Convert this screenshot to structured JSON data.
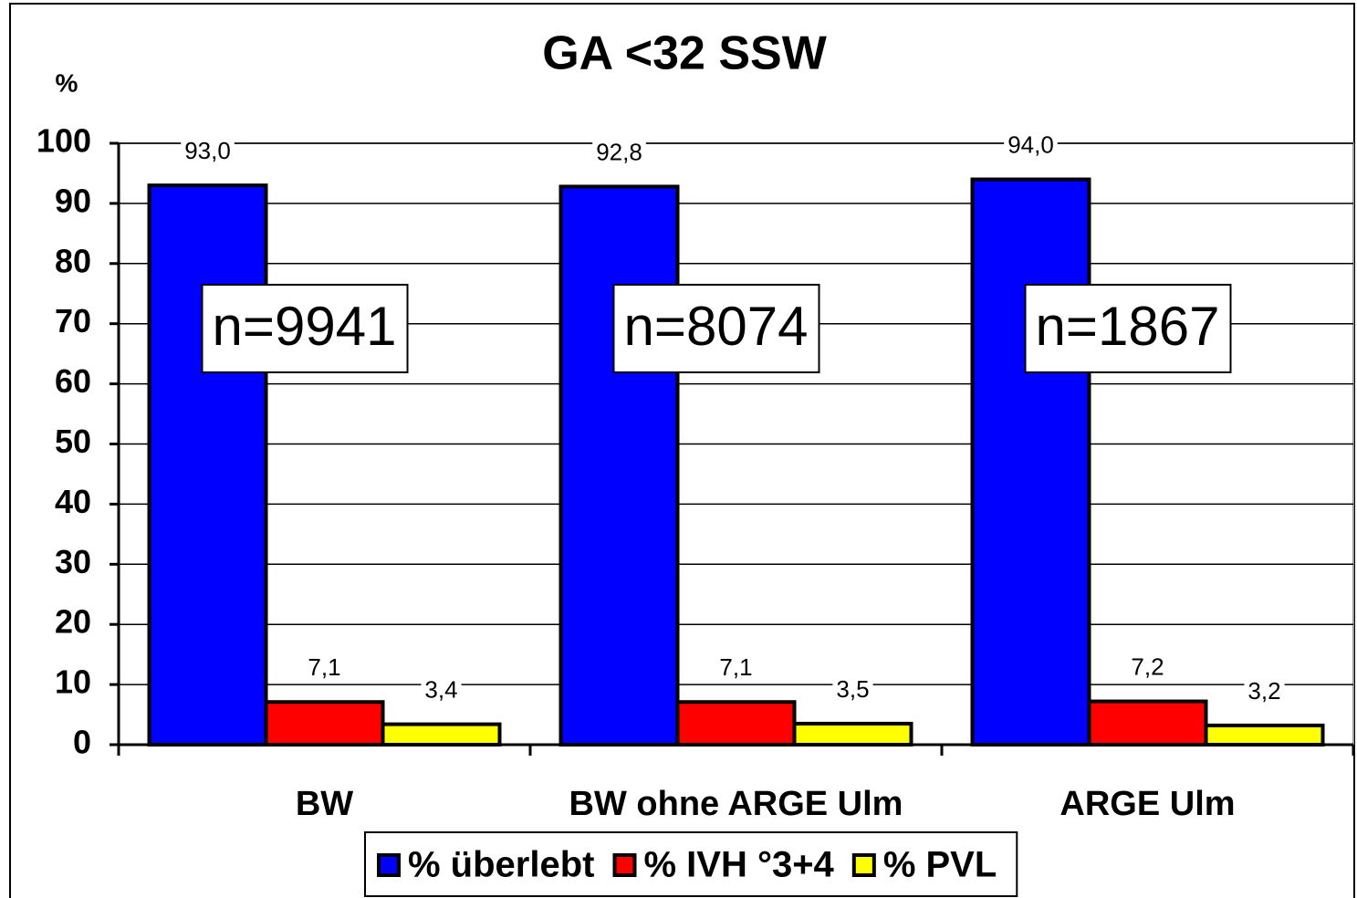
{
  "chart_data": {
    "type": "bar",
    "title": "GA <32 SSW",
    "y_label": "%",
    "categories": [
      "BW",
      "BW ohne ARGE Ulm",
      "ARGE Ulm"
    ],
    "series": [
      {
        "name": "% überlebt",
        "color": "#0000ff",
        "values": [
          93.0,
          92.8,
          94.0
        ],
        "value_labels": [
          "93,0",
          "92,8",
          "94,0"
        ]
      },
      {
        "name": "% IVH °3+4",
        "color": "#ff0000",
        "values": [
          7.1,
          7.1,
          7.2
        ],
        "value_labels": [
          "7,1",
          "7,1",
          "7,2"
        ]
      },
      {
        "name": "% PVL",
        "color": "#ffff00",
        "values": [
          3.4,
          3.5,
          3.2
        ],
        "value_labels": [
          "3,4",
          "3,5",
          "3,2"
        ]
      }
    ],
    "annotations": [
      "n=9941",
      "n=8074",
      "n=1867"
    ],
    "ylim": [
      0,
      100
    ],
    "yticks": [
      0,
      10,
      20,
      30,
      40,
      50,
      60,
      70,
      80,
      90,
      100
    ],
    "grid": true,
    "legend": "bottom"
  }
}
